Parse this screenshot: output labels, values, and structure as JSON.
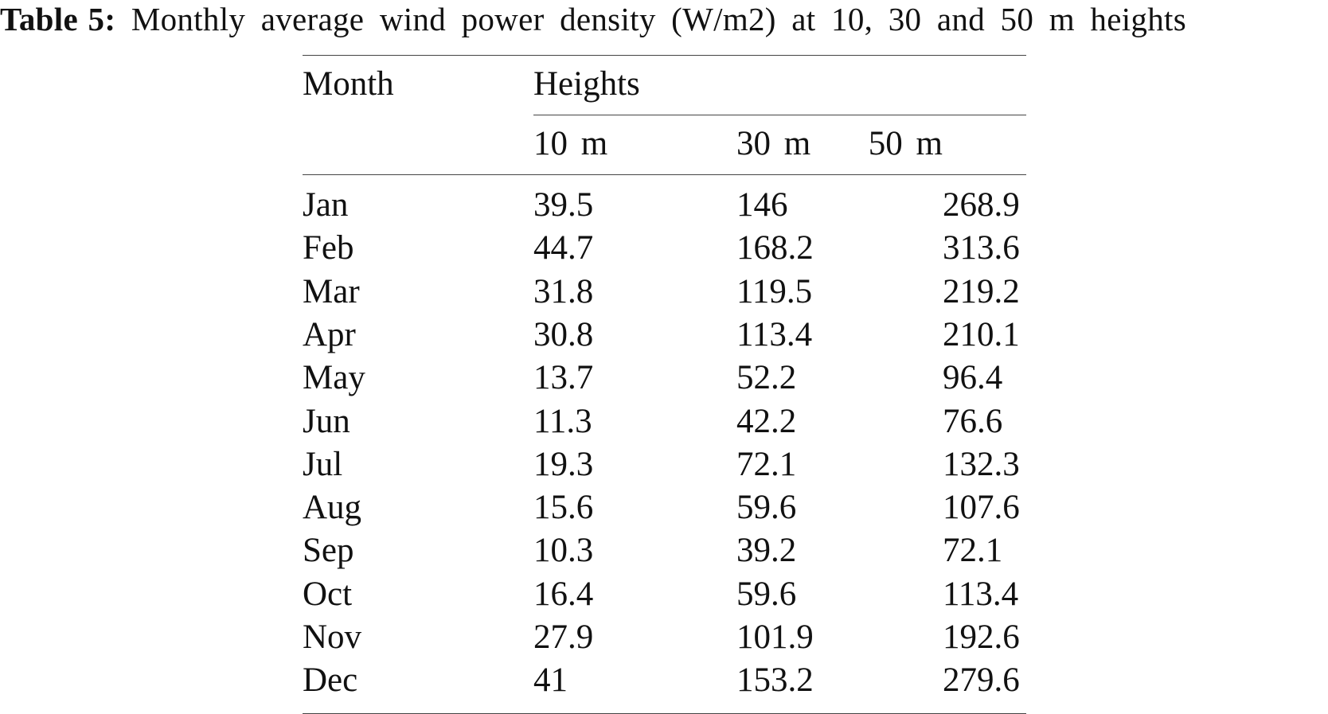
{
  "caption": {
    "label": "Table 5:",
    "text": "Monthly average wind power density (W/m2) at 10, 30 and 50 m heights"
  },
  "header": {
    "month": "Month",
    "heights": "Heights",
    "h10": "10 m",
    "h30": "30 m",
    "h50": "50 m"
  },
  "rows": [
    {
      "month": "Jan",
      "h10": "39.5",
      "h30": "146",
      "h50": "268.9"
    },
    {
      "month": "Feb",
      "h10": "44.7",
      "h30": "168.2",
      "h50": "313.6"
    },
    {
      "month": "Mar",
      "h10": "31.8",
      "h30": "119.5",
      "h50": "219.2"
    },
    {
      "month": "Apr",
      "h10": "30.8",
      "h30": "113.4",
      "h50": "210.1"
    },
    {
      "month": "May",
      "h10": "13.7",
      "h30": "52.2",
      "h50": "96.4"
    },
    {
      "month": "Jun",
      "h10": "11.3",
      "h30": "42.2",
      "h50": "76.6"
    },
    {
      "month": "Jul",
      "h10": "19.3",
      "h30": "72.1",
      "h50": "132.3"
    },
    {
      "month": "Aug",
      "h10": "15.6",
      "h30": "59.6",
      "h50": "107.6"
    },
    {
      "month": "Sep",
      "h10": "10.3",
      "h30": "39.2",
      "h50": "72.1"
    },
    {
      "month": "Oct",
      "h10": "16.4",
      "h30": "59.6",
      "h50": "113.4"
    },
    {
      "month": "Nov",
      "h10": "27.9",
      "h30": "101.9",
      "h50": "192.6"
    },
    {
      "month": "Dec",
      "h10": "41",
      "h30": "153.2",
      "h50": "279.6"
    }
  ]
}
